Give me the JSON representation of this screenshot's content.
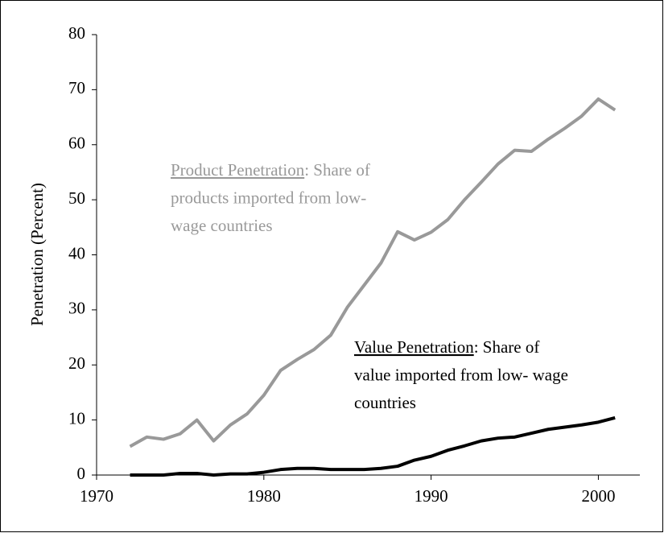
{
  "chart_data": {
    "type": "line",
    "y_label": "Penetration (Percent)",
    "x": [
      1972,
      1973,
      1974,
      1975,
      1976,
      1977,
      1978,
      1979,
      1980,
      1981,
      1982,
      1983,
      1984,
      1985,
      1986,
      1987,
      1988,
      1989,
      1990,
      1991,
      1992,
      1993,
      1994,
      1995,
      1996,
      1997,
      1998,
      1999,
      2000,
      2001
    ],
    "series": [
      {
        "color": "#999999",
        "values": [
          5.2,
          6.9,
          6.5,
          7.5,
          10,
          6.2,
          9.1,
          11.1,
          14.5,
          19,
          21,
          22.8,
          25.4,
          30.5,
          34.5,
          38.5,
          44.2,
          42.7,
          44.1,
          46.4,
          50,
          53.2,
          56.5,
          59,
          58.8,
          61,
          63,
          65.2,
          68.3,
          66.3
        ]
      },
      {
        "color": "#000000",
        "values": [
          0,
          0,
          0,
          0.3,
          0.3,
          0,
          0.2,
          0.2,
          0.5,
          1,
          1.2,
          1.2,
          1,
          1,
          1,
          1.2,
          1.6,
          2.7,
          3.4,
          4.5,
          5.3,
          6.2,
          6.7,
          6.9,
          7.6,
          8.3,
          8.7,
          9.1,
          9.6,
          10.4
        ]
      }
    ],
    "annotations": [
      {
        "color": "#999999",
        "heading": "Product Penetration",
        "text": [
          ": Share of",
          "products imported from low-",
          "wage countries"
        ]
      },
      {
        "color": "#000000",
        "heading": "Value Penetration",
        "text": [
          ": Share of",
          "value imported from low- wage",
          "countries"
        ]
      }
    ],
    "xlim": [
      1970,
      2002
    ],
    "xticks": [
      1970,
      1980,
      1990,
      2000
    ],
    "ylim": [
      0,
      80
    ],
    "yticks": [
      0,
      10,
      20,
      30,
      40,
      50,
      60,
      70,
      80
    ]
  }
}
